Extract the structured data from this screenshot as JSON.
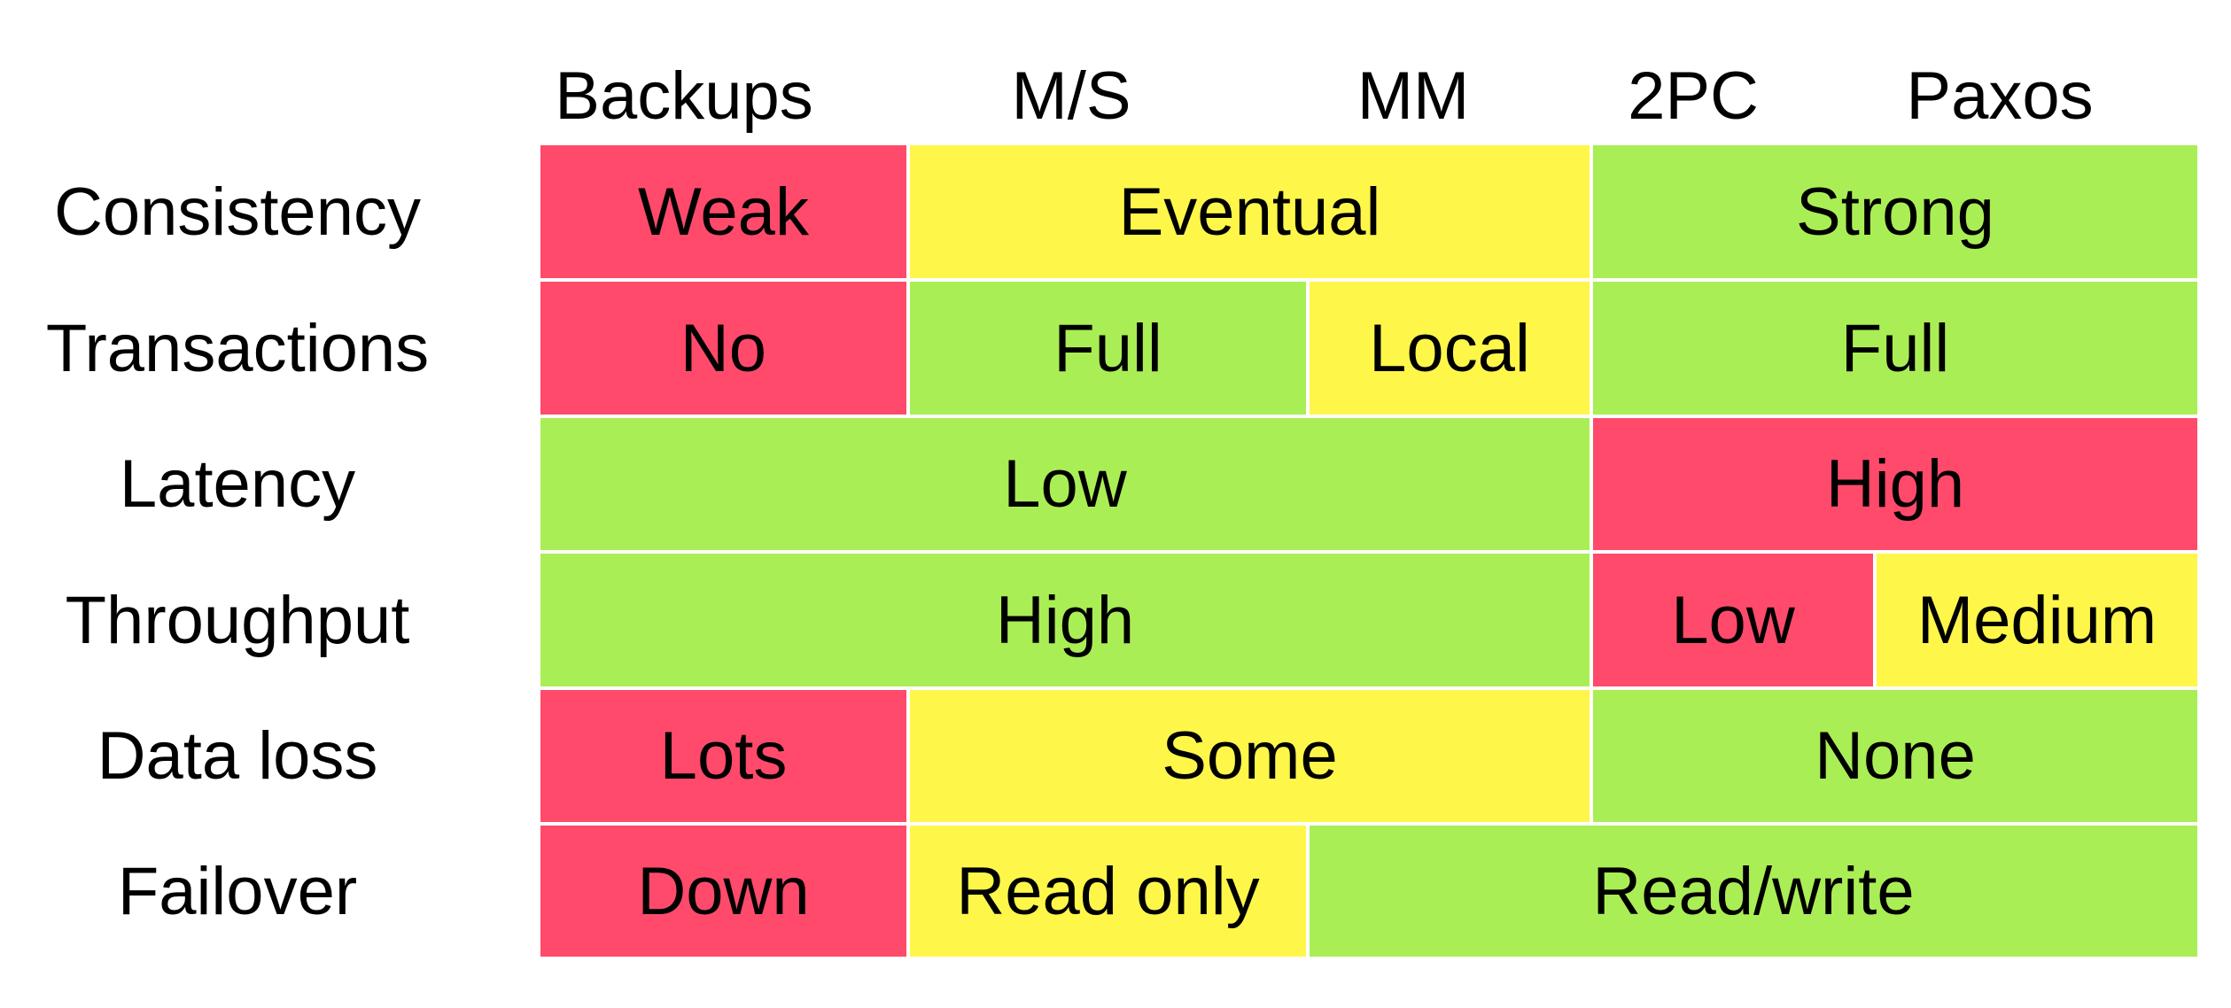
{
  "columns": [
    "Backups",
    "M/S",
    "MM",
    "2PC",
    "Paxos"
  ],
  "rows": [
    {
      "label": "Consistency",
      "cells": [
        {
          "text": "Weak",
          "span": 1,
          "color": "#ff4a6b"
        },
        {
          "text": "Eventual",
          "span": 2,
          "color": "#fff64a"
        },
        {
          "text": "Strong",
          "span": 2,
          "color": "#aaee55"
        }
      ]
    },
    {
      "label": "Transactions",
      "cells": [
        {
          "text": "No",
          "span": 1,
          "color": "#ff4a6b"
        },
        {
          "text": "Full",
          "span": 1,
          "color": "#aaee55"
        },
        {
          "text": "Local",
          "span": 1,
          "color": "#fff64a"
        },
        {
          "text": "Full",
          "span": 2,
          "color": "#aaee55"
        }
      ]
    },
    {
      "label": "Latency",
      "cells": [
        {
          "text": "Low",
          "span": 3,
          "color": "#aaee55"
        },
        {
          "text": "High",
          "span": 2,
          "color": "#ff4a6b"
        }
      ]
    },
    {
      "label": "Throughput",
      "cells": [
        {
          "text": "High",
          "span": 3,
          "color": "#aaee55"
        },
        {
          "text": "Low",
          "span": 1,
          "color": "#ff4a6b"
        },
        {
          "text": "Medium",
          "span": 1,
          "color": "#fff64a"
        }
      ]
    },
    {
      "label": "Data loss",
      "cells": [
        {
          "text": "Lots",
          "span": 1,
          "color": "#ff4a6b"
        },
        {
          "text": "Some",
          "span": 2,
          "color": "#fff64a"
        },
        {
          "text": "None",
          "span": 2,
          "color": "#aaee55"
        }
      ]
    },
    {
      "label": "Failover",
      "cells": [
        {
          "text": "Down",
          "span": 1,
          "color": "#ff4a6b"
        },
        {
          "text": "Read only",
          "span": 1,
          "color": "#fff64a"
        },
        {
          "text": "Read/write",
          "span": 3,
          "color": "#aaee55"
        }
      ]
    }
  ]
}
